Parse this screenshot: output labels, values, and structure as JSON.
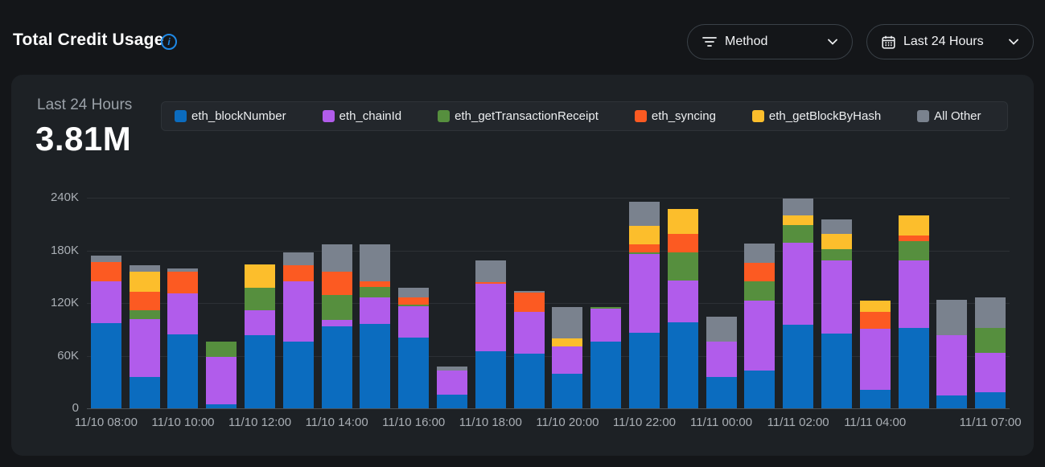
{
  "header": {
    "title": "Total Credit Usage",
    "filters": {
      "method": {
        "label": "Method"
      },
      "time_range": {
        "label": "Last 24 Hours"
      }
    }
  },
  "card": {
    "period_label": "Last 24 Hours",
    "total_value": "3.81M"
  },
  "colors": {
    "page_bg": "#141619",
    "card_bg": "#1d2125",
    "legend_bg": "#23272c",
    "grid": "#2c3035",
    "axis_text": "#a9aeb4",
    "info_accent": "#1e88e5"
  },
  "chart_data": {
    "type": "bar",
    "stacked": true,
    "title": "Total Credit Usage",
    "ylabel": "",
    "xlabel": "",
    "ylim": [
      0,
      240000
    ],
    "grid": true,
    "legend_position": "top",
    "x": [
      "11/10 08:00",
      "11/10 09:00",
      "11/10 10:00",
      "11/10 11:00",
      "11/10 12:00",
      "11/10 13:00",
      "11/10 14:00",
      "11/10 15:00",
      "11/10 16:00",
      "11/10 17:00",
      "11/10 18:00",
      "11/10 19:00",
      "11/10 20:00",
      "11/10 21:00",
      "11/10 22:00",
      "11/10 23:00",
      "11/11 00:00",
      "11/11 01:00",
      "11/11 02:00",
      "11/11 03:00",
      "11/11 04:00",
      "11/11 05:00",
      "11/11 06:00",
      "11/11 07:00"
    ],
    "xtick_indices": [
      0,
      2,
      4,
      6,
      8,
      10,
      12,
      14,
      16,
      18,
      20,
      23
    ],
    "yticks": [
      {
        "value": 240000,
        "label": "240K"
      },
      {
        "value": 180000,
        "label": "180K"
      },
      {
        "value": 120000,
        "label": "120K"
      },
      {
        "value": 60000,
        "label": "60K"
      },
      {
        "value": 0,
        "label": "0"
      }
    ],
    "series": [
      {
        "name": "eth_blockNumber",
        "color": "#0b6cbf",
        "values": [
          97000,
          36000,
          84000,
          5000,
          83000,
          76000,
          93000,
          96000,
          81000,
          16000,
          65000,
          62000,
          39000,
          76000,
          86000,
          98000,
          36000,
          43000,
          95000,
          85000,
          21000,
          92000,
          15000,
          18000
        ]
      },
      {
        "name": "eth_chainId",
        "color": "#b15ceb",
        "values": [
          48000,
          66000,
          47000,
          54000,
          29000,
          69000,
          8000,
          30000,
          35000,
          27000,
          77000,
          48000,
          32000,
          38000,
          90000,
          48000,
          40000,
          80000,
          94000,
          84000,
          70000,
          77000,
          68000,
          45000
        ]
      },
      {
        "name": "eth_getTransactionReceipt",
        "color": "#568f3e",
        "values": [
          0,
          10000,
          0,
          17000,
          25000,
          0,
          28000,
          12000,
          2000,
          0,
          0,
          0,
          0,
          1500,
          2000,
          32000,
          0,
          22000,
          20000,
          12000,
          0,
          22000,
          0,
          29000
        ]
      },
      {
        "name": "eth_syncing",
        "color": "#fc5a22",
        "values": [
          22000,
          21000,
          25000,
          0,
          0,
          18000,
          27000,
          7000,
          8000,
          0,
          2000,
          22000,
          0,
          0,
          9000,
          21000,
          0,
          21000,
          0,
          0,
          19000,
          6000,
          0,
          0
        ]
      },
      {
        "name": "eth_getBlockByHash",
        "color": "#fcbe2c",
        "values": [
          0,
          23000,
          0,
          0,
          27000,
          0,
          0,
          0,
          0,
          0,
          0,
          0,
          9000,
          0,
          21000,
          28000,
          0,
          0,
          11000,
          18000,
          13000,
          23000,
          0,
          0
        ]
      },
      {
        "name": "All Other",
        "color": "#7a828e",
        "values": [
          7000,
          7000,
          3000,
          0,
          0,
          15000,
          31000,
          42000,
          11000,
          5000,
          25000,
          1500,
          35000,
          0,
          27000,
          0,
          28000,
          22000,
          19000,
          16000,
          0,
          0,
          41000,
          34000
        ]
      }
    ]
  }
}
